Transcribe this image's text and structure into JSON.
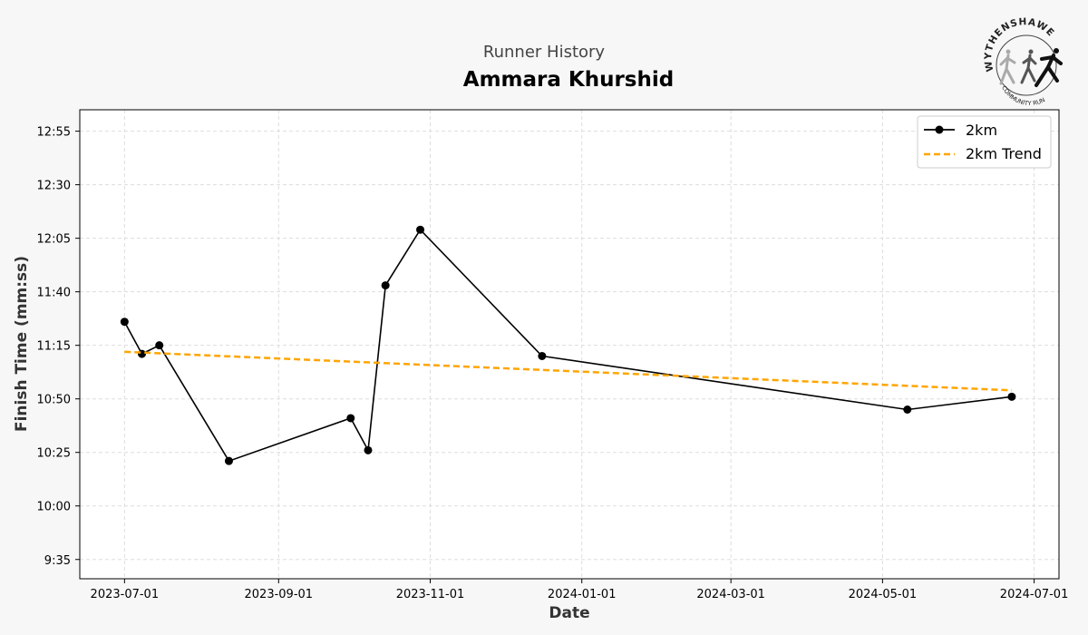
{
  "header": {
    "subtitle": "Runner History",
    "title": "Ammara Khurshid"
  },
  "logo": {
    "top_text": "WYTHENSHAWE",
    "bottom_text": "COMMUNITY RUN"
  },
  "chart_data": {
    "type": "line",
    "xlabel": "Date",
    "ylabel": "Finish Time (mm:ss)",
    "x_ticks": [
      "2023-07-01",
      "2023-09-01",
      "2023-11-01",
      "2024-01-01",
      "2024-03-01",
      "2024-05-01",
      "2024-07-01"
    ],
    "y_ticks": [
      "9:35",
      "10:00",
      "10:25",
      "10:50",
      "11:15",
      "11:40",
      "12:05",
      "12:30",
      "12:55"
    ],
    "xlim": [
      "2023-06-13",
      "2024-07-11"
    ],
    "ylim": [
      "9:26",
      "13:05"
    ],
    "grid": true,
    "legend_position": "top-right",
    "series": [
      {
        "name": "2km",
        "style": "line-marker",
        "color": "#000000",
        "points": [
          {
            "x": "2023-07-01",
            "y": "11:26"
          },
          {
            "x": "2023-07-08",
            "y": "11:11"
          },
          {
            "x": "2023-07-15",
            "y": "11:15"
          },
          {
            "x": "2023-08-12",
            "y": "10:21"
          },
          {
            "x": "2023-09-30",
            "y": "10:41"
          },
          {
            "x": "2023-10-07",
            "y": "10:26"
          },
          {
            "x": "2023-10-14",
            "y": "11:43"
          },
          {
            "x": "2023-10-28",
            "y": "12:09"
          },
          {
            "x": "2023-12-16",
            "y": "11:10"
          },
          {
            "x": "2024-05-11",
            "y": "10:45"
          },
          {
            "x": "2024-06-22",
            "y": "10:51"
          }
        ]
      },
      {
        "name": "2km Trend",
        "style": "dashed",
        "color": "#ffa500",
        "points": [
          {
            "x": "2023-07-01",
            "y": "11:12"
          },
          {
            "x": "2024-06-22",
            "y": "10:54"
          }
        ]
      }
    ]
  }
}
